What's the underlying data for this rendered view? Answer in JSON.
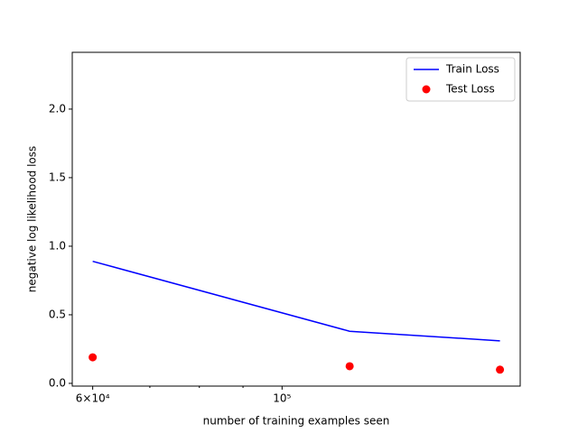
{
  "chart_data": {
    "type": "line-scatter",
    "xscale": "log",
    "x_label": "number of training examples seen",
    "y_label": "negative log likelihood loss",
    "x": [
      60000,
      120000,
      180000
    ],
    "series": [
      {
        "name": "Train Loss",
        "color": "#0000ff",
        "kind": "line",
        "values": [
          0.89,
          0.38,
          0.31
        ]
      },
      {
        "name": "Test Loss",
        "color": "#ff0000",
        "kind": "scatter",
        "values": [
          0.19,
          0.125,
          0.1
        ]
      }
    ],
    "xlim": [
      56780,
      190100
    ],
    "ylim": [
      -0.02,
      2.414
    ],
    "xticks": [
      {
        "value": 60000,
        "label": "6×10⁴"
      },
      {
        "value": 100000,
        "label": "10⁵"
      }
    ],
    "xminorticks": [
      70000,
      80000,
      90000
    ],
    "yticks": [
      {
        "value": 0,
        "label": "0.0"
      },
      {
        "value": 0.5,
        "label": "0.5"
      },
      {
        "value": 1,
        "label": "1.0"
      },
      {
        "value": 1.5,
        "label": "1.5"
      },
      {
        "value": 2,
        "label": "2.0"
      }
    ],
    "legend": "upper right"
  }
}
